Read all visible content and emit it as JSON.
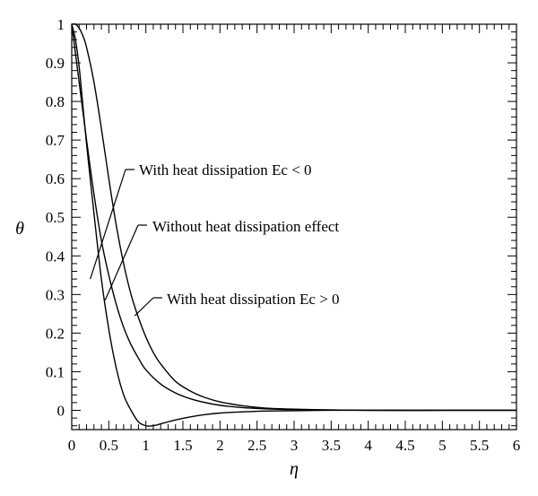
{
  "chart_data": {
    "type": "line",
    "title": "",
    "xlabel": "η",
    "ylabel": "θ",
    "xlim": [
      0,
      6
    ],
    "ylim": [
      -0.05,
      1.0
    ],
    "grid": false,
    "legend": "none",
    "x_ticks": [
      "0",
      "0.5",
      "1",
      "1.5",
      "2",
      "2.5",
      "3",
      "3.5",
      "4",
      "4.5",
      "5",
      "5.5",
      "6"
    ],
    "y_ticks": [
      "0",
      "0.1",
      "0.2",
      "0.3",
      "0.4",
      "0.5",
      "0.6",
      "0.7",
      "0.8",
      "0.9",
      "1"
    ],
    "series": [
      {
        "key": "ec_negative",
        "x": [
          0,
          0.05,
          0.1,
          0.15,
          0.2,
          0.3,
          0.4,
          0.5,
          0.6,
          0.7,
          0.8,
          0.9,
          1.0,
          1.1,
          1.2,
          1.4,
          1.6,
          1.8,
          2.0,
          2.3,
          2.6,
          3.0,
          3.5,
          4.0,
          5.0,
          6.0
        ],
        "y": [
          1.0,
          0.96,
          0.89,
          0.79,
          0.69,
          0.51,
          0.34,
          0.21,
          0.11,
          0.04,
          0.0,
          -0.03,
          -0.04,
          -0.04,
          -0.035,
          -0.025,
          -0.017,
          -0.011,
          -0.007,
          -0.004,
          -0.002,
          -0.001,
          0.0,
          0.0,
          0.0,
          0.0
        ]
      },
      {
        "key": "no_dissipation",
        "x": [
          0,
          0.1,
          0.2,
          0.3,
          0.4,
          0.5,
          0.6,
          0.7,
          0.8,
          0.9,
          1.0,
          1.2,
          1.4,
          1.6,
          1.8,
          2.0,
          2.3,
          2.6,
          3.0,
          3.5,
          4.0,
          5.0,
          6.0
        ],
        "y": [
          1.0,
          0.85,
          0.7,
          0.56,
          0.44,
          0.35,
          0.275,
          0.215,
          0.17,
          0.135,
          0.105,
          0.068,
          0.045,
          0.03,
          0.02,
          0.013,
          0.007,
          0.004,
          0.002,
          0.001,
          0.0,
          0.0,
          0.0
        ]
      },
      {
        "key": "ec_positive",
        "x": [
          0,
          0.05,
          0.1,
          0.15,
          0.2,
          0.3,
          0.4,
          0.5,
          0.6,
          0.7,
          0.8,
          0.9,
          1.0,
          1.1,
          1.2,
          1.4,
          1.6,
          1.8,
          2.0,
          2.3,
          2.6,
          3.0,
          3.5,
          4.0,
          5.0,
          6.0
        ],
        "y": [
          1.0,
          1.0,
          0.99,
          0.97,
          0.94,
          0.85,
          0.73,
          0.6,
          0.48,
          0.38,
          0.3,
          0.24,
          0.19,
          0.15,
          0.12,
          0.075,
          0.05,
          0.033,
          0.022,
          0.012,
          0.006,
          0.003,
          0.001,
          0.0,
          0.0,
          0.0
        ]
      }
    ],
    "annotations": [
      {
        "text": "With heat dissipation Ec < 0",
        "target_series": "ec_negative",
        "point": [
          0.25,
          0.34
        ]
      },
      {
        "text": "Without heat dissipation effect",
        "target_series": "no_dissipation",
        "point": [
          0.45,
          0.285
        ]
      },
      {
        "text": "With heat dissipation Ec > 0",
        "target_series": "ec_positive",
        "point": [
          0.85,
          0.245
        ]
      }
    ]
  }
}
